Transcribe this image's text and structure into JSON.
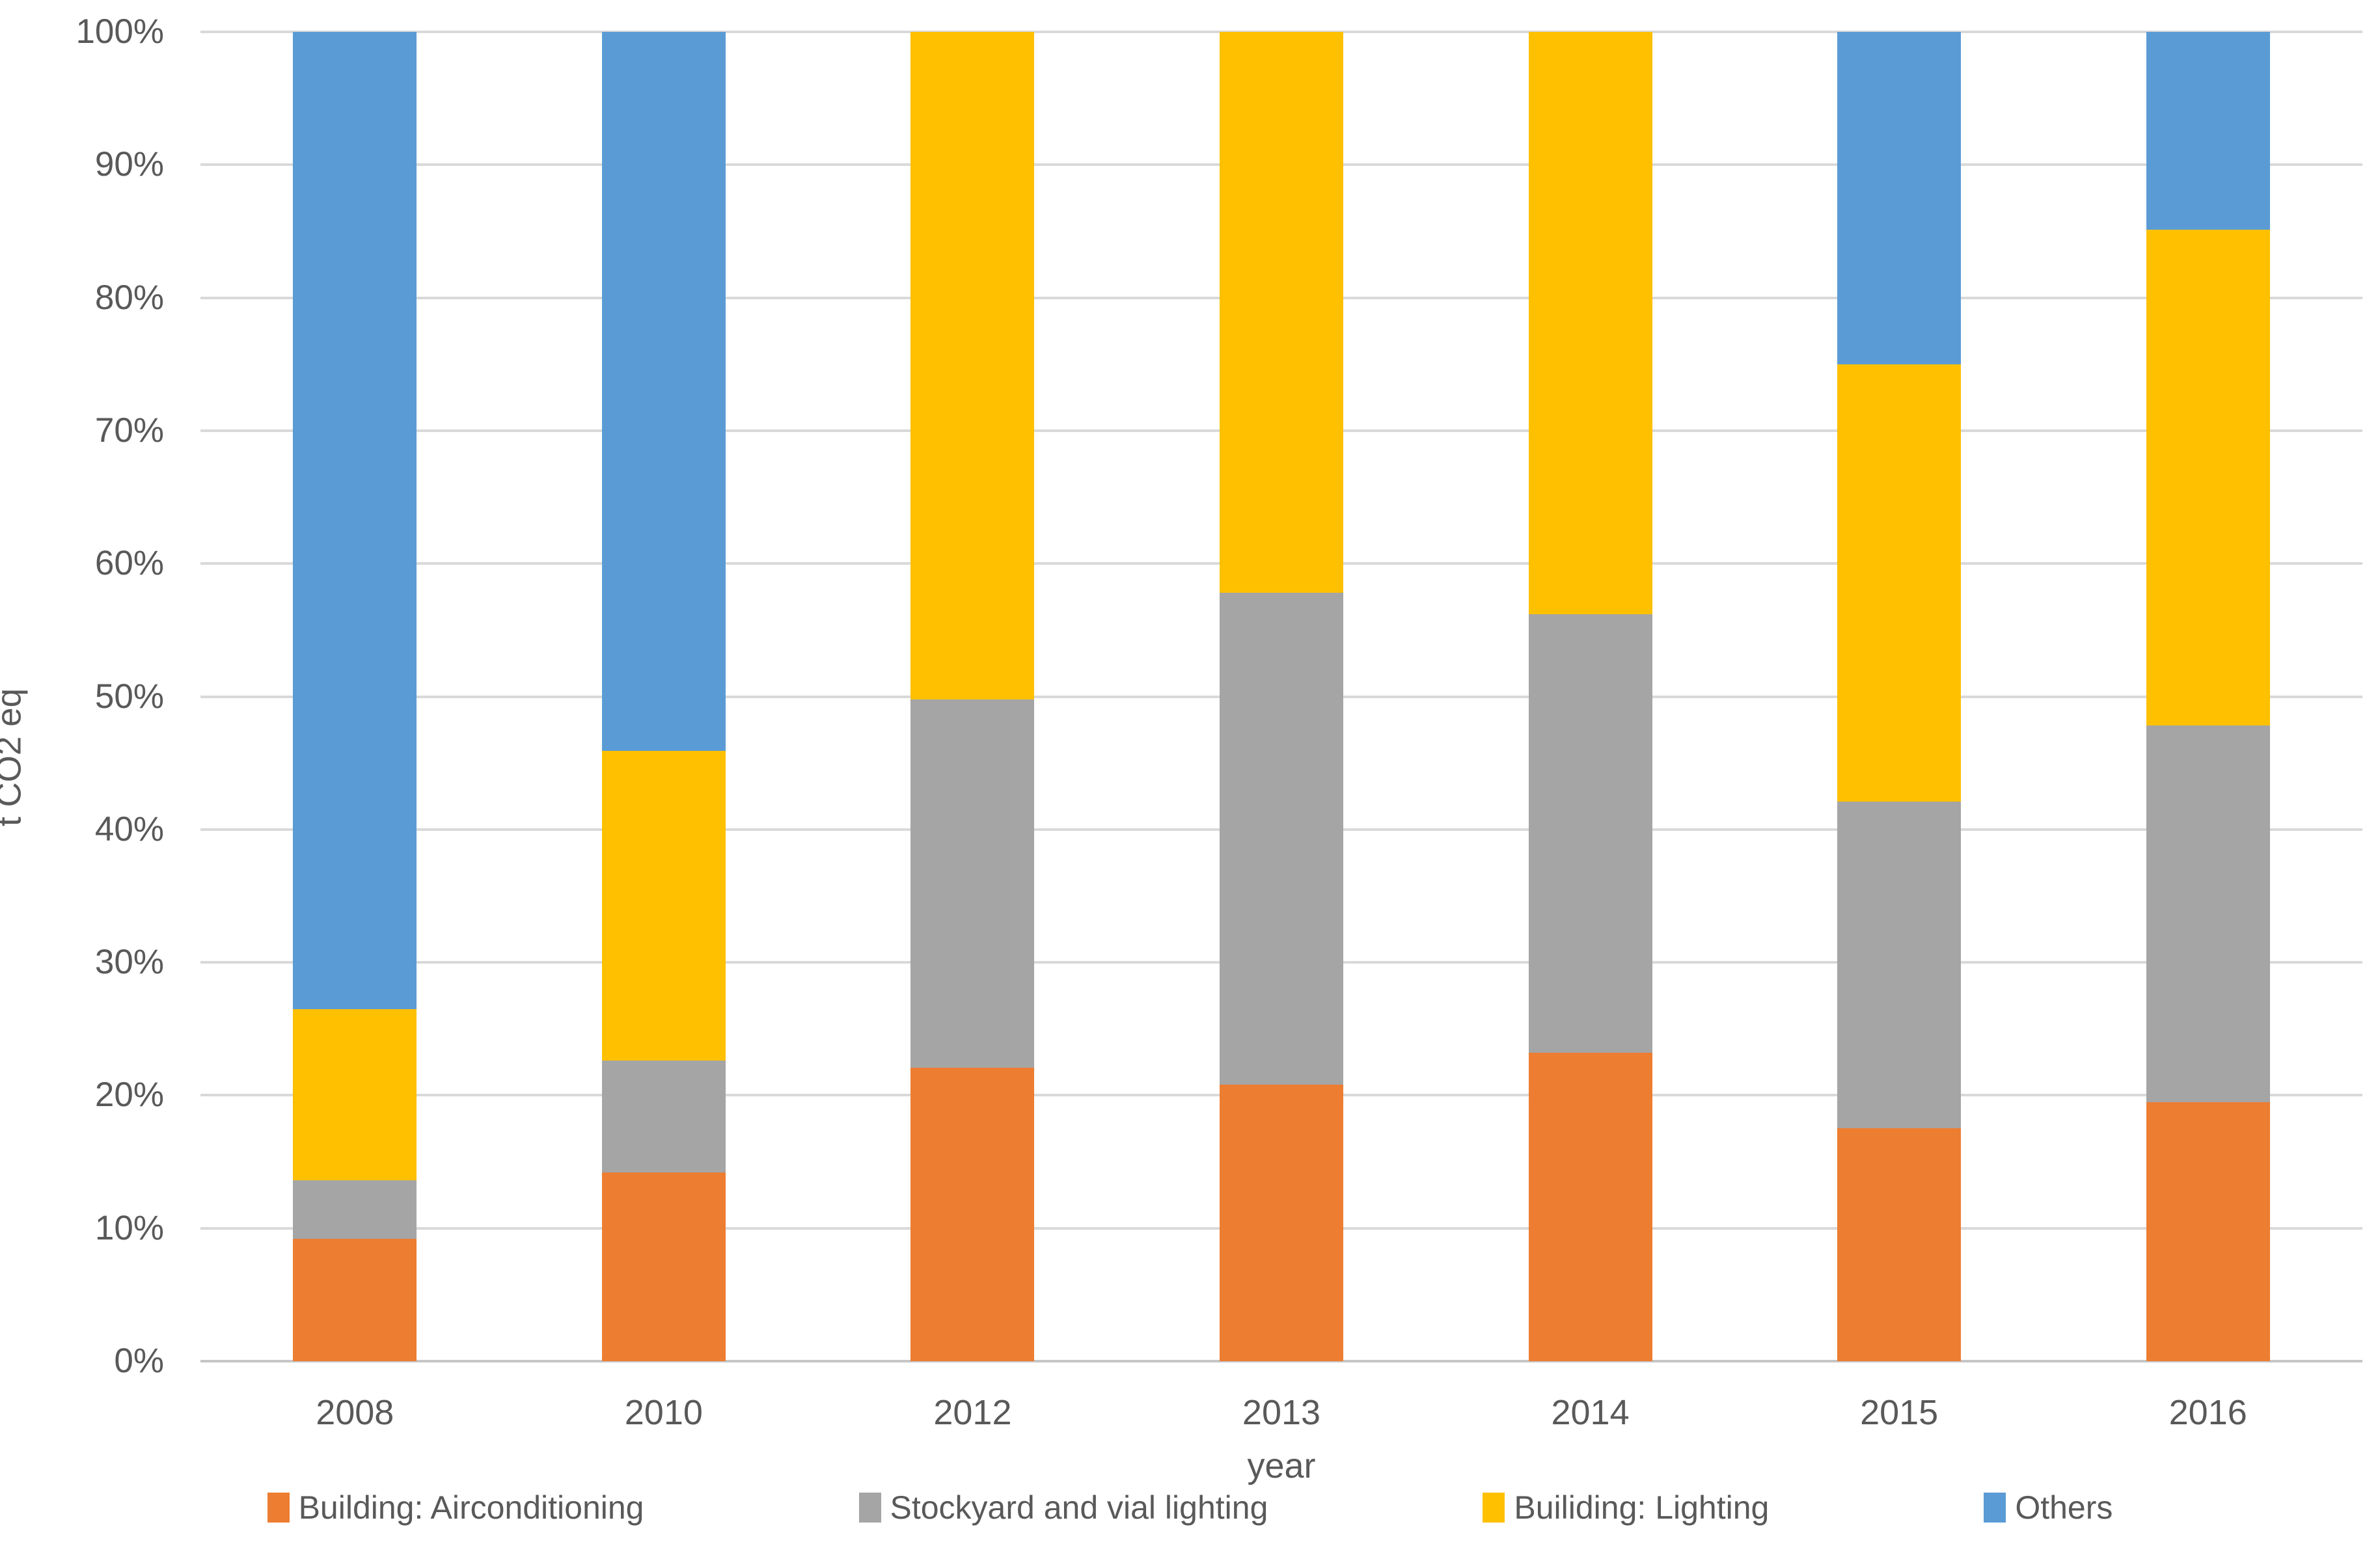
{
  "chart_data": {
    "type": "bar",
    "subtype": "stacked-100-percent",
    "title": "",
    "xlabel": "year",
    "ylabel": "t CO2 eq",
    "categories": [
      "2008",
      "2010",
      "2012",
      "2013",
      "2014",
      "2015",
      "2016"
    ],
    "series": [
      {
        "name": "Building: Airconditioning",
        "color": "#ED7D31",
        "values": [
          9.2,
          14.2,
          22.1,
          20.8,
          23.2,
          17.5,
          19.5
        ]
      },
      {
        "name": "Stockyard and vial lighting",
        "color": "#A5A5A5",
        "values": [
          4.4,
          8.4,
          27.7,
          37.0,
          33.0,
          24.6,
          28.3
        ]
      },
      {
        "name": "Builiding: Lighting",
        "color": "#FFC000",
        "values": [
          12.9,
          23.3,
          50.2,
          42.2,
          43.8,
          32.9,
          37.3
        ]
      },
      {
        "name": "Others",
        "color": "#5B9BD5",
        "values": [
          73.5,
          54.1,
          0.0,
          0.0,
          0.0,
          25.0,
          14.9
        ]
      }
    ],
    "ylim": [
      0,
      100
    ],
    "ytick_step": 10,
    "ytick_labels": [
      "0%",
      "10%",
      "20%",
      "30%",
      "40%",
      "50%",
      "60%",
      "70%",
      "80%",
      "90%",
      "100%"
    ],
    "grid": true,
    "gridline_color": "#D9D9D9",
    "axis_line_color": "#C6C6C6",
    "text_color": "#595959",
    "background_color": "#FFFFFF",
    "legend_position": "bottom"
  }
}
